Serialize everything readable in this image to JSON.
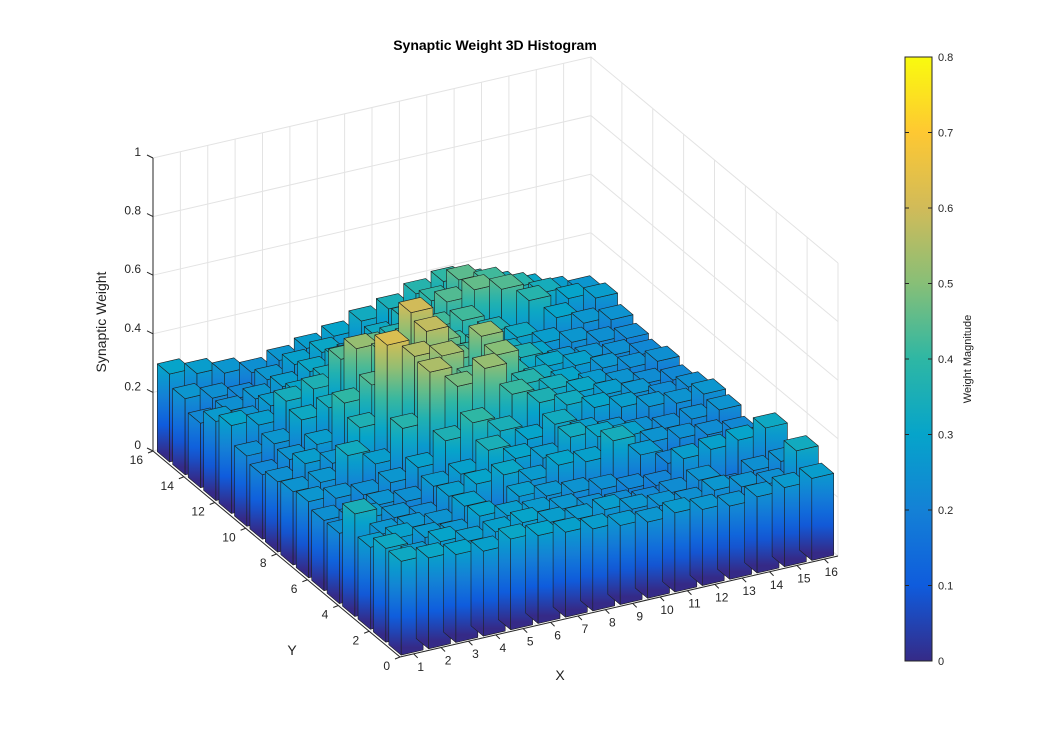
{
  "figure": {
    "title": "Synaptic Weight 3D Histogram"
  },
  "chart_data": {
    "type": "bar3d",
    "title": "Synaptic Weight 3D Histogram",
    "xlabel": "X",
    "ylabel": "Y",
    "zlabel": "Synaptic Weight",
    "x_ticks": [
      "1",
      "2",
      "3",
      "4",
      "5",
      "6",
      "7",
      "8",
      "9",
      "10",
      "11",
      "12",
      "13",
      "14",
      "15",
      "16"
    ],
    "y_ticks": [
      "0",
      "2",
      "4",
      "6",
      "8",
      "10",
      "12",
      "14",
      "16"
    ],
    "z_ticks": [
      "0",
      "0.2",
      "0.4",
      "0.6",
      "0.8",
      "1"
    ],
    "zlim": [
      0,
      1
    ],
    "grid": true,
    "colorbar": {
      "label": "Weight Magnitude",
      "limits": [
        0,
        0.8
      ],
      "ticks": [
        "0",
        "0.1",
        "0.2",
        "0.3",
        "0.4",
        "0.5",
        "0.6",
        "0.7",
        "0.8"
      ],
      "colormap": [
        "#352a87",
        "#0f5cdd",
        "#1481d6",
        "#06a4ca",
        "#2eb7a4",
        "#87bf77",
        "#d1bb59",
        "#fec832",
        "#f9fb0e"
      ]
    },
    "grid_size": [
      16,
      16
    ],
    "values": [
      [
        0.32,
        0.31,
        0.3,
        0.29,
        0.31,
        0.3,
        0.29,
        0.28,
        0.27,
        0.26,
        0.27,
        0.26,
        0.25,
        0.26,
        0.27,
        0.28
      ],
      [
        0.32,
        0.27,
        0.3,
        0.28,
        0.29,
        0.3,
        0.28,
        0.27,
        0.28,
        0.26,
        0.25,
        0.24,
        0.26,
        0.25,
        0.24,
        0.33
      ],
      [
        0.28,
        0.29,
        0.27,
        0.26,
        0.3,
        0.28,
        0.27,
        0.26,
        0.24,
        0.23,
        0.22,
        0.23,
        0.25,
        0.2,
        0.24,
        0.25
      ],
      [
        0.35,
        0.26,
        0.26,
        0.25,
        0.29,
        0.2,
        0.28,
        0.26,
        0.25,
        0.24,
        0.22,
        0.21,
        0.28,
        0.29,
        0.3,
        0.32
      ],
      [
        0.24,
        0.27,
        0.25,
        0.23,
        0.28,
        0.3,
        0.31,
        0.27,
        0.3,
        0.29,
        0.34,
        0.27,
        0.22,
        0.12,
        0.2,
        0.23
      ],
      [
        0.24,
        0.22,
        0.25,
        0.24,
        0.27,
        0.29,
        0.35,
        0.3,
        0.28,
        0.33,
        0.31,
        0.29,
        0.25,
        0.24,
        0.23,
        0.22
      ],
      [
        0.26,
        0.25,
        0.24,
        0.26,
        0.29,
        0.36,
        0.4,
        0.35,
        0.3,
        0.33,
        0.28,
        0.26,
        0.24,
        0.23,
        0.24,
        0.25
      ],
      [
        0.25,
        0.26,
        0.33,
        0.28,
        0.38,
        0.55,
        0.48,
        0.52,
        0.41,
        0.36,
        0.33,
        0.3,
        0.28,
        0.26,
        0.25,
        0.26
      ],
      [
        0.24,
        0.28,
        0.26,
        0.36,
        0.62,
        0.56,
        0.54,
        0.44,
        0.5,
        0.38,
        0.34,
        0.31,
        0.28,
        0.26,
        0.23,
        0.24
      ],
      [
        0.22,
        0.25,
        0.28,
        0.4,
        0.44,
        0.5,
        0.58,
        0.46,
        0.52,
        0.37,
        0.33,
        0.3,
        0.27,
        0.25,
        0.23,
        0.22
      ],
      [
        0.24,
        0.26,
        0.32,
        0.34,
        0.52,
        0.48,
        0.6,
        0.48,
        0.41,
        0.38,
        0.36,
        0.31,
        0.29,
        0.26,
        0.24,
        0.24
      ],
      [
        0.3,
        0.28,
        0.34,
        0.36,
        0.44,
        0.46,
        0.42,
        0.4,
        0.4,
        0.38,
        0.33,
        0.3,
        0.26,
        0.25,
        0.24,
        0.22
      ],
      [
        0.27,
        0.25,
        0.28,
        0.3,
        0.33,
        0.35,
        0.38,
        0.4,
        0.42,
        0.42,
        0.36,
        0.32,
        0.28,
        0.26,
        0.24,
        0.23
      ],
      [
        0.22,
        0.24,
        0.26,
        0.28,
        0.31,
        0.33,
        0.34,
        0.36,
        0.38,
        0.44,
        0.46,
        0.44,
        0.38,
        0.3,
        0.26,
        0.25
      ],
      [
        0.26,
        0.24,
        0.22,
        0.26,
        0.29,
        0.31,
        0.28,
        0.32,
        0.36,
        0.4,
        0.45,
        0.42,
        0.38,
        0.34,
        0.3,
        0.28
      ],
      [
        0.3,
        0.28,
        0.26,
        0.24,
        0.26,
        0.28,
        0.3,
        0.33,
        0.35,
        0.38,
        0.4,
        0.37,
        0.34,
        0.31,
        0.28,
        0.26
      ]
    ]
  }
}
